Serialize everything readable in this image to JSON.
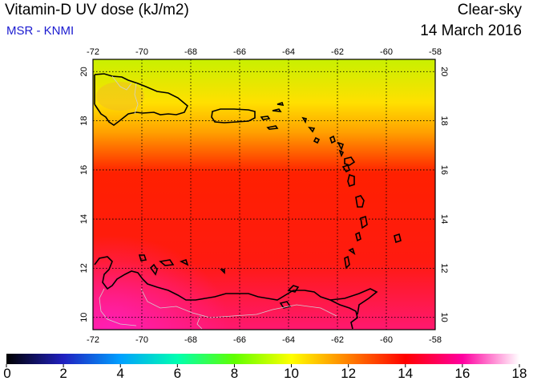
{
  "header": {
    "title": "Vitamin-D UV dose (kJ/m2)",
    "source": "MSR - KNMI",
    "condition": "Clear-sky",
    "date": "14 March 2016"
  },
  "map": {
    "lon_range": [
      -72,
      -58
    ],
    "lat_range": [
      9.5,
      20.5
    ],
    "lon_ticks": [
      "-72",
      "-70",
      "-68",
      "-66",
      "-64",
      "-62",
      "-60",
      "-58"
    ],
    "lat_ticks": [
      "10",
      "12",
      "14",
      "16",
      "18",
      "20"
    ],
    "grid": true,
    "field_colors": {
      "north": "#c8f000",
      "upper": "#ffe000",
      "middle": "#ff2000",
      "south": "#ff1870"
    }
  },
  "colorbar": {
    "min": 0,
    "max": 18,
    "labels": [
      "0",
      "2",
      "4",
      "6",
      "8",
      "10",
      "12",
      "14",
      "16",
      "18"
    ],
    "colors": [
      "#000000",
      "#2020c0",
      "#00a0ff",
      "#00ffb0",
      "#60ff00",
      "#ffff00",
      "#ff8000",
      "#ff0000",
      "#ff00a0",
      "#ffffff"
    ]
  }
}
